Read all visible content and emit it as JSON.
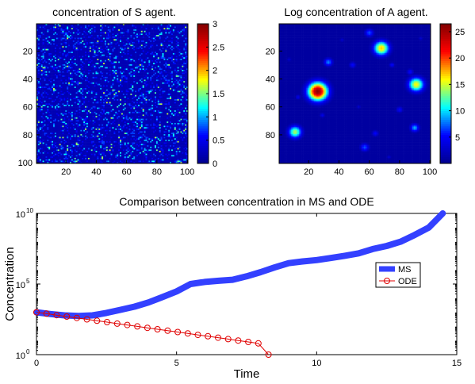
{
  "chart_data": [
    {
      "type": "heatmap",
      "title": "concentration of S agent.",
      "xticks": [
        "20",
        "40",
        "60",
        "80",
        "100"
      ],
      "yticks": [
        "20",
        "40",
        "60",
        "80",
        "100"
      ],
      "grid_size": 100,
      "colorbar": {
        "ticks": [
          "0",
          "0.5",
          "1",
          "1.5",
          "2",
          "2.5",
          "3"
        ],
        "range": [
          0,
          3
        ]
      },
      "colormap": [
        "#00008f",
        "#0000ff",
        "#00ffff",
        "#ffff00",
        "#ff0000",
        "#800000"
      ],
      "background_value": 0.2,
      "density_note": "sparse speckle of mostly 0.4–1.2 values, some up to ~1.7"
    },
    {
      "type": "heatmap",
      "title": "Log concentration of A agent.",
      "xticks": [
        "20",
        "40",
        "60",
        "80",
        "100"
      ],
      "yticks": [
        "20",
        "40",
        "60",
        "80"
      ],
      "grid_size": 100,
      "colorbar": {
        "ticks": [
          "5",
          "10",
          "15",
          "20",
          "25"
        ],
        "range": [
          0,
          26.5
        ]
      },
      "colormap": [
        "#00008f",
        "#0000ff",
        "#00ffff",
        "#ffff00",
        "#ff0000",
        "#800000"
      ],
      "background_value": 0.8,
      "blobs": [
        {
          "x": 26,
          "y": 49,
          "peak": 26,
          "r": 4.5
        },
        {
          "x": 68,
          "y": 18,
          "peak": 17,
          "r": 3.5
        },
        {
          "x": 91,
          "y": 44,
          "peak": 16,
          "r": 3.5
        },
        {
          "x": 11,
          "y": 78,
          "peak": 14,
          "r": 3.0
        },
        {
          "x": 33,
          "y": 28,
          "peak": 8,
          "r": 2.0
        },
        {
          "x": 60,
          "y": 7,
          "peak": 7,
          "r": 2.0
        },
        {
          "x": 90,
          "y": 75,
          "peak": 9,
          "r": 2.0
        },
        {
          "x": 57,
          "y": 89,
          "peak": 7,
          "r": 2.0
        },
        {
          "x": 49,
          "y": 30,
          "peak": 5,
          "r": 1.5
        },
        {
          "x": 80,
          "y": 62,
          "peak": 5,
          "r": 1.5
        },
        {
          "x": 29,
          "y": 66,
          "peak": 4,
          "r": 1.2
        },
        {
          "x": 87,
          "y": 35,
          "peak": 5,
          "r": 1.5
        },
        {
          "x": 75,
          "y": 30,
          "peak": 5,
          "r": 1.2
        },
        {
          "x": 64,
          "y": 79,
          "peak": 5,
          "r": 1.5
        },
        {
          "x": 7,
          "y": 26,
          "peak": 3,
          "r": 1.0
        },
        {
          "x": 13,
          "y": 53,
          "peak": 4,
          "r": 1.2
        },
        {
          "x": 94,
          "y": 11,
          "peak": 3,
          "r": 1.0
        },
        {
          "x": 42,
          "y": 12,
          "peak": 3,
          "r": 1.0
        },
        {
          "x": 53,
          "y": 60,
          "peak": 3,
          "r": 1.0
        },
        {
          "x": 73,
          "y": 96,
          "peak": 3,
          "r": 1.0
        }
      ]
    },
    {
      "type": "line",
      "title": "Comparison between concentration in MS and ODE",
      "xlabel": "Time",
      "ylabel": "Concentration",
      "xlim": [
        0,
        15
      ],
      "ylim": [
        1,
        10000000000
      ],
      "yscale": "log",
      "xticks": [
        "0",
        "5",
        "10",
        "15"
      ],
      "yticks": [
        {
          "base": "10",
          "exp": "0",
          "value": 1
        },
        {
          "base": "10",
          "exp": "5",
          "value": 100000
        },
        {
          "base": "10",
          "exp": "10",
          "value": 10000000000
        }
      ],
      "legend": {
        "placement": "right"
      },
      "series": [
        {
          "name": "MS",
          "color": "#3340ff",
          "marker": "none",
          "x": [
            0,
            0.5,
            1,
            1.5,
            2,
            2.5,
            3,
            3.5,
            4,
            4.5,
            5,
            5.5,
            6,
            6.5,
            7,
            7.5,
            8,
            8.5,
            9,
            9.5,
            10,
            10.5,
            11,
            11.5,
            12,
            12.5,
            13,
            13.5,
            14,
            14.5
          ],
          "y": [
            1000,
            750,
            600,
            550,
            600,
            900,
            1500,
            2500,
            5000,
            12000,
            30000,
            100000,
            140000,
            170000,
            200000,
            350000,
            700000,
            1500000,
            3000000,
            4000000,
            5000000,
            7000000,
            10000000,
            15000000,
            30000000,
            50000000,
            100000000,
            300000000,
            1000000000,
            10000000000
          ]
        },
        {
          "name": "ODE",
          "color": "#e00000",
          "marker": "circle",
          "x": [
            0,
            0.36,
            0.72,
            1.08,
            1.44,
            1.8,
            2.16,
            2.52,
            2.88,
            3.24,
            3.6,
            3.96,
            4.32,
            4.68,
            5.04,
            5.4,
            5.76,
            6.12,
            6.48,
            6.84,
            7.2,
            7.56,
            7.92,
            8.28
          ],
          "y": [
            1000,
            800,
            630,
            500,
            400,
            316,
            250,
            200,
            158,
            126,
            100,
            79,
            63,
            50,
            40,
            32,
            25,
            20,
            16,
            12.6,
            10,
            7.9,
            6.3,
            1
          ]
        }
      ]
    }
  ]
}
